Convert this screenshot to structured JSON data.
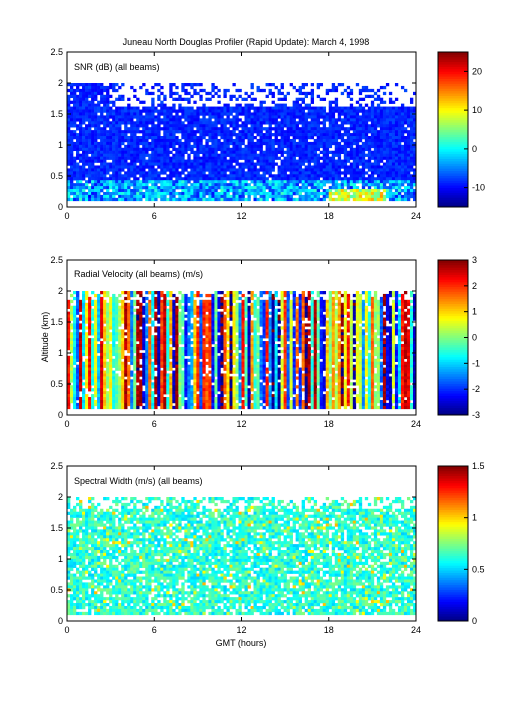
{
  "figure": {
    "title": "Juneau North Douglas Profiler (Rapid Update):     March  4, 1998",
    "shared_xlabel": "GMT (hours)",
    "shared_ylabel": "Altitude (km)"
  },
  "chart_data": [
    {
      "type": "heatmap",
      "title": "SNR (dB) (all beams)",
      "xlabel": "",
      "ylabel": "",
      "xlim": [
        0,
        24
      ],
      "ylim": [
        0,
        2.5
      ],
      "x_ticks": [
        "0",
        "6",
        "12",
        "18",
        "24"
      ],
      "y_ticks": [
        "0",
        "0.5",
        "1",
        "1.5",
        "2",
        "2.5"
      ],
      "colorbar": {
        "range": [
          -15,
          25
        ],
        "ticks": [
          "-10",
          "0",
          "10",
          "20"
        ]
      },
      "data_coverage": {
        "max_altitude_km": 2.0,
        "min_altitude_km": 0.1
      },
      "grid": false
    },
    {
      "type": "heatmap",
      "title": "Radial Velocity (all beams) (m/s)",
      "xlabel": "",
      "ylabel": "Altitude (km)",
      "xlim": [
        0,
        24
      ],
      "ylim": [
        0,
        2.5
      ],
      "x_ticks": [
        "0",
        "6",
        "12",
        "18",
        "24"
      ],
      "y_ticks": [
        "0",
        "0.5",
        "1",
        "1.5",
        "2",
        "2.5"
      ],
      "colorbar": {
        "range": [
          -3,
          3
        ],
        "ticks": [
          "-3",
          "-2",
          "-1",
          "0",
          "1",
          "2",
          "3"
        ]
      },
      "data_coverage": {
        "max_altitude_km": 2.0,
        "min_altitude_km": 0.1
      },
      "grid": false
    },
    {
      "type": "heatmap",
      "title": "Spectral Width (m/s) (all beams)",
      "xlabel": "GMT (hours)",
      "ylabel": "",
      "xlim": [
        0,
        24
      ],
      "ylim": [
        0,
        2.5
      ],
      "x_ticks": [
        "0",
        "6",
        "12",
        "18",
        "24"
      ],
      "y_ticks": [
        "0",
        "0.5",
        "1",
        "1.5",
        "2",
        "2.5"
      ],
      "colorbar": {
        "range": [
          0,
          1.5
        ],
        "ticks": [
          "0",
          "0.5",
          "1",
          "1.5"
        ]
      },
      "data_coverage": {
        "max_altitude_km": 2.0,
        "min_altitude_km": 0.1
      },
      "grid": false
    }
  ]
}
